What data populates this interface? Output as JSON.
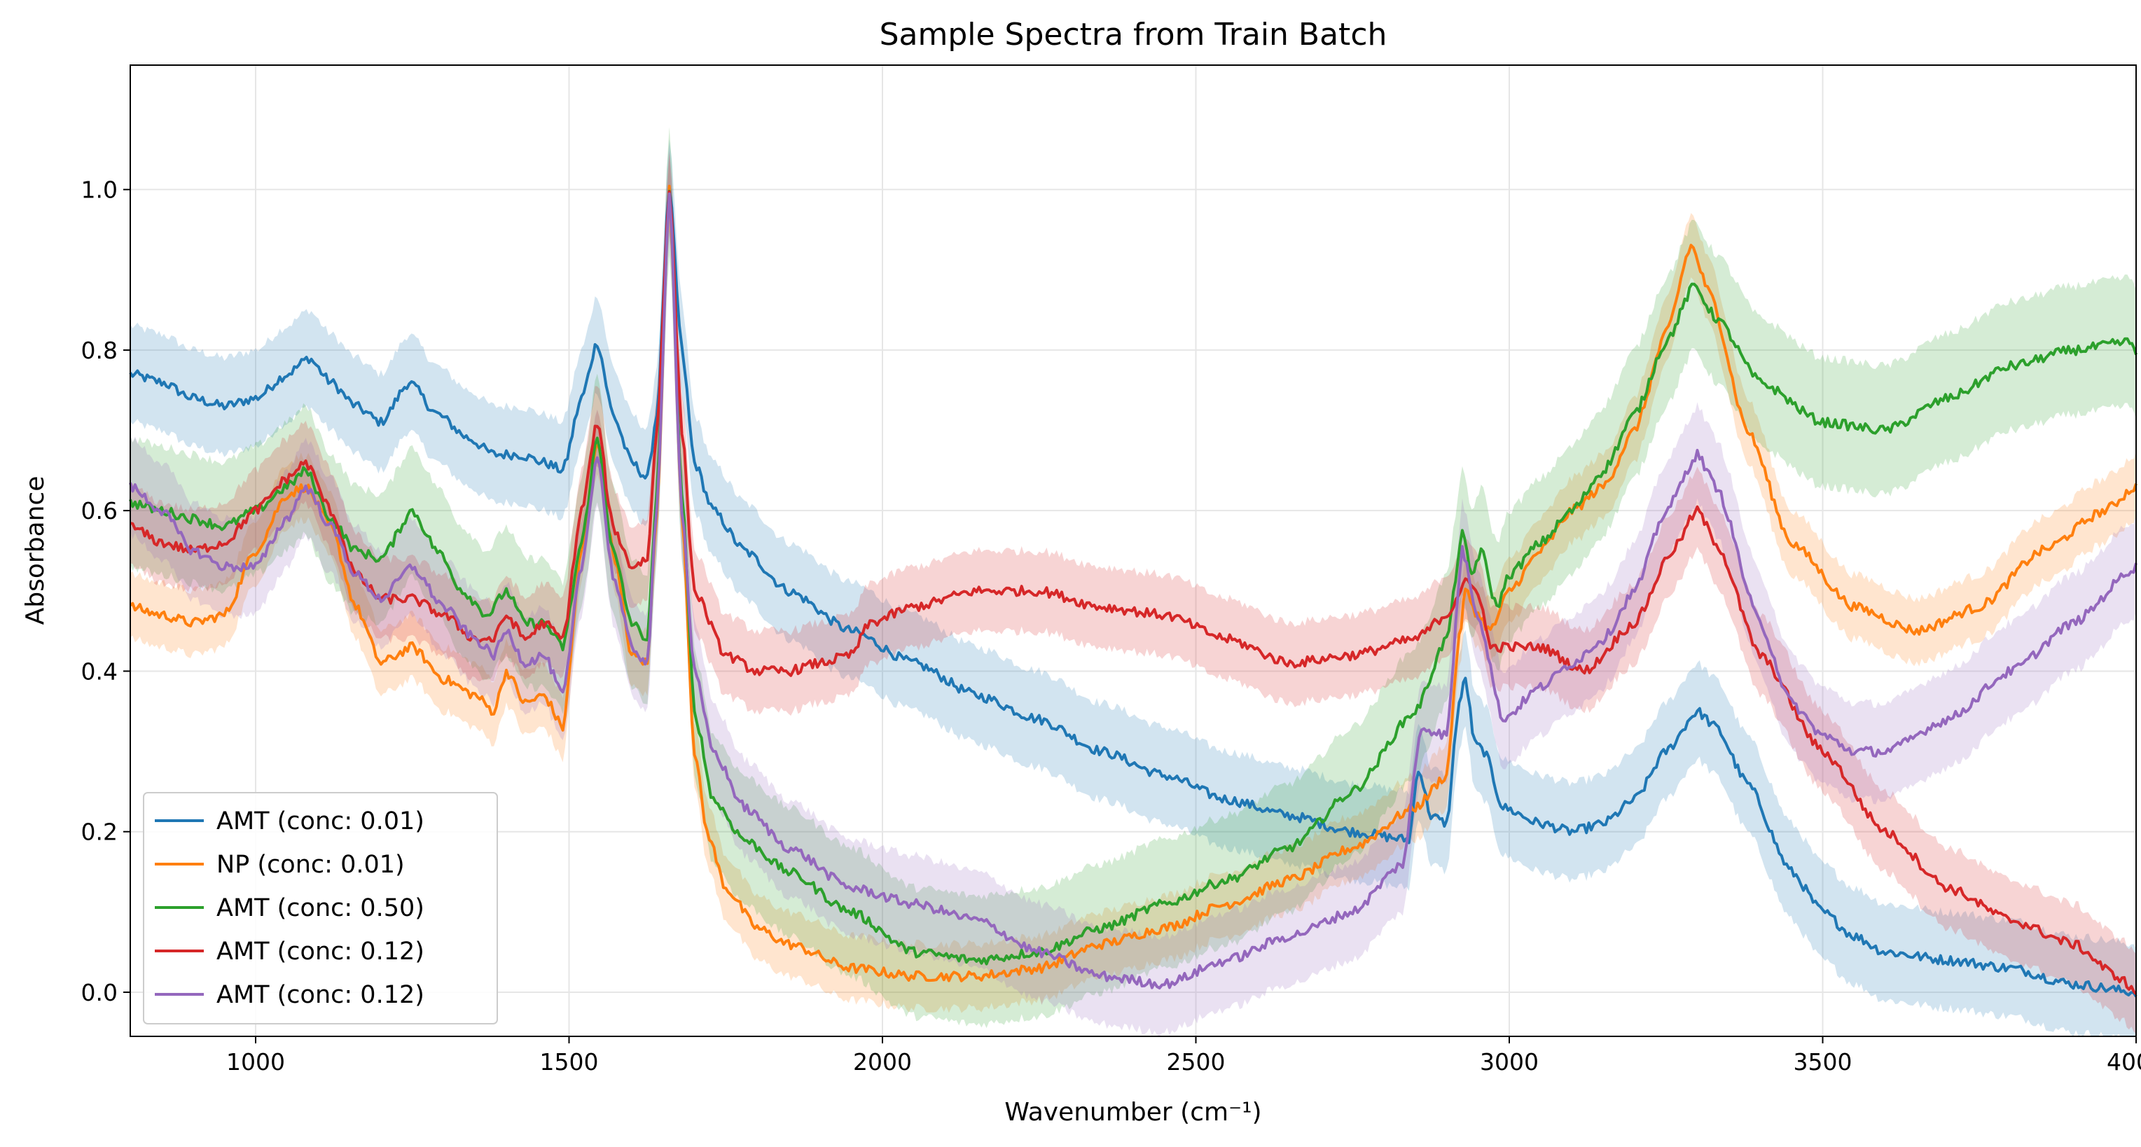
{
  "chart_data": {
    "type": "line",
    "title": "Sample Spectra from Train Batch",
    "xlabel": "Wavenumber (cm⁻¹)",
    "ylabel": "Absorbance",
    "xlim": [
      800,
      4000
    ],
    "ylim": [
      -0.055,
      1.155
    ],
    "x_ticks": [
      1000,
      1500,
      2000,
      2500,
      3000,
      3500,
      4000
    ],
    "y_ticks": [
      0.0,
      0.2,
      0.4,
      0.6,
      0.8,
      1.0
    ],
    "grid": true,
    "legend_position": "lower-left",
    "series": [
      {
        "name": "AMT (conc: 0.01)",
        "color": "#1f77b4",
        "band": 0.06,
        "points": [
          [
            800,
            0.77
          ],
          [
            850,
            0.76
          ],
          [
            900,
            0.74
          ],
          [
            950,
            0.73
          ],
          [
            1000,
            0.74
          ],
          [
            1050,
            0.77
          ],
          [
            1085,
            0.79
          ],
          [
            1120,
            0.76
          ],
          [
            1160,
            0.73
          ],
          [
            1200,
            0.71
          ],
          [
            1245,
            0.76
          ],
          [
            1290,
            0.72
          ],
          [
            1340,
            0.69
          ],
          [
            1380,
            0.67
          ],
          [
            1420,
            0.67
          ],
          [
            1460,
            0.66
          ],
          [
            1490,
            0.65
          ],
          [
            1520,
            0.74
          ],
          [
            1545,
            0.81
          ],
          [
            1570,
            0.72
          ],
          [
            1600,
            0.66
          ],
          [
            1625,
            0.64
          ],
          [
            1640,
            0.72
          ],
          [
            1660,
            1.0
          ],
          [
            1680,
            0.8
          ],
          [
            1700,
            0.66
          ],
          [
            1730,
            0.6
          ],
          [
            1780,
            0.55
          ],
          [
            1850,
            0.5
          ],
          [
            1950,
            0.45
          ],
          [
            2050,
            0.41
          ],
          [
            2150,
            0.37
          ],
          [
            2250,
            0.34
          ],
          [
            2350,
            0.3
          ],
          [
            2450,
            0.27
          ],
          [
            2550,
            0.24
          ],
          [
            2650,
            0.22
          ],
          [
            2750,
            0.2
          ],
          [
            2840,
            0.19
          ],
          [
            2855,
            0.28
          ],
          [
            2875,
            0.22
          ],
          [
            2900,
            0.21
          ],
          [
            2920,
            0.36
          ],
          [
            2930,
            0.39
          ],
          [
            2945,
            0.31
          ],
          [
            2960,
            0.3
          ],
          [
            2990,
            0.23
          ],
          [
            3050,
            0.21
          ],
          [
            3100,
            0.2
          ],
          [
            3150,
            0.21
          ],
          [
            3200,
            0.24
          ],
          [
            3250,
            0.3
          ],
          [
            3300,
            0.35
          ],
          [
            3330,
            0.33
          ],
          [
            3380,
            0.26
          ],
          [
            3450,
            0.15
          ],
          [
            3500,
            0.1
          ],
          [
            3550,
            0.07
          ],
          [
            3600,
            0.05
          ],
          [
            3700,
            0.04
          ],
          [
            3800,
            0.03
          ],
          [
            3900,
            0.01
          ],
          [
            4000,
            0.0
          ]
        ]
      },
      {
        "name": "NP (conc: 0.01)",
        "color": "#ff7f0e",
        "band": 0.04,
        "points": [
          [
            800,
            0.48
          ],
          [
            850,
            0.47
          ],
          [
            900,
            0.46
          ],
          [
            950,
            0.47
          ],
          [
            1000,
            0.55
          ],
          [
            1050,
            0.62
          ],
          [
            1080,
            0.63
          ],
          [
            1120,
            0.58
          ],
          [
            1160,
            0.48
          ],
          [
            1200,
            0.41
          ],
          [
            1250,
            0.43
          ],
          [
            1300,
            0.39
          ],
          [
            1350,
            0.37
          ],
          [
            1380,
            0.35
          ],
          [
            1400,
            0.4
          ],
          [
            1430,
            0.36
          ],
          [
            1460,
            0.37
          ],
          [
            1490,
            0.33
          ],
          [
            1520,
            0.55
          ],
          [
            1545,
            0.69
          ],
          [
            1570,
            0.55
          ],
          [
            1600,
            0.42
          ],
          [
            1625,
            0.41
          ],
          [
            1640,
            0.6
          ],
          [
            1660,
            1.0
          ],
          [
            1680,
            0.6
          ],
          [
            1700,
            0.3
          ],
          [
            1720,
            0.2
          ],
          [
            1750,
            0.13
          ],
          [
            1800,
            0.08
          ],
          [
            1850,
            0.06
          ],
          [
            1950,
            0.03
          ],
          [
            2050,
            0.02
          ],
          [
            2150,
            0.02
          ],
          [
            2250,
            0.03
          ],
          [
            2350,
            0.06
          ],
          [
            2450,
            0.08
          ],
          [
            2550,
            0.11
          ],
          [
            2650,
            0.14
          ],
          [
            2750,
            0.18
          ],
          [
            2850,
            0.23
          ],
          [
            2900,
            0.27
          ],
          [
            2920,
            0.44
          ],
          [
            2930,
            0.5
          ],
          [
            2950,
            0.47
          ],
          [
            2970,
            0.45
          ],
          [
            3000,
            0.5
          ],
          [
            3050,
            0.55
          ],
          [
            3100,
            0.6
          ],
          [
            3150,
            0.63
          ],
          [
            3200,
            0.7
          ],
          [
            3250,
            0.82
          ],
          [
            3290,
            0.93
          ],
          [
            3320,
            0.87
          ],
          [
            3380,
            0.7
          ],
          [
            3450,
            0.56
          ],
          [
            3550,
            0.48
          ],
          [
            3650,
            0.45
          ],
          [
            3750,
            0.48
          ],
          [
            3850,
            0.55
          ],
          [
            3950,
            0.6
          ],
          [
            4000,
            0.63
          ]
        ]
      },
      {
        "name": "AMT (conc: 0.50)",
        "color": "#2ca02c",
        "band": 0.08,
        "points": [
          [
            800,
            0.61
          ],
          [
            850,
            0.6
          ],
          [
            900,
            0.59
          ],
          [
            950,
            0.58
          ],
          [
            1000,
            0.6
          ],
          [
            1050,
            0.63
          ],
          [
            1080,
            0.65
          ],
          [
            1120,
            0.59
          ],
          [
            1160,
            0.55
          ],
          [
            1200,
            0.54
          ],
          [
            1250,
            0.6
          ],
          [
            1290,
            0.55
          ],
          [
            1330,
            0.5
          ],
          [
            1370,
            0.47
          ],
          [
            1400,
            0.5
          ],
          [
            1430,
            0.46
          ],
          [
            1460,
            0.46
          ],
          [
            1490,
            0.43
          ],
          [
            1520,
            0.56
          ],
          [
            1545,
            0.69
          ],
          [
            1570,
            0.55
          ],
          [
            1600,
            0.46
          ],
          [
            1625,
            0.44
          ],
          [
            1640,
            0.62
          ],
          [
            1660,
            1.0
          ],
          [
            1680,
            0.62
          ],
          [
            1700,
            0.35
          ],
          [
            1730,
            0.24
          ],
          [
            1780,
            0.19
          ],
          [
            1850,
            0.15
          ],
          [
            1950,
            0.1
          ],
          [
            2050,
            0.05
          ],
          [
            2150,
            0.04
          ],
          [
            2250,
            0.05
          ],
          [
            2350,
            0.08
          ],
          [
            2450,
            0.11
          ],
          [
            2550,
            0.14
          ],
          [
            2650,
            0.18
          ],
          [
            2750,
            0.25
          ],
          [
            2850,
            0.35
          ],
          [
            2900,
            0.44
          ],
          [
            2925,
            0.57
          ],
          [
            2940,
            0.52
          ],
          [
            2955,
            0.55
          ],
          [
            2980,
            0.48
          ],
          [
            3000,
            0.52
          ],
          [
            3050,
            0.56
          ],
          [
            3100,
            0.6
          ],
          [
            3150,
            0.65
          ],
          [
            3200,
            0.72
          ],
          [
            3250,
            0.81
          ],
          [
            3295,
            0.88
          ],
          [
            3330,
            0.84
          ],
          [
            3400,
            0.76
          ],
          [
            3500,
            0.71
          ],
          [
            3600,
            0.7
          ],
          [
            3700,
            0.74
          ],
          [
            3800,
            0.78
          ],
          [
            3900,
            0.8
          ],
          [
            3990,
            0.81
          ],
          [
            4000,
            0.8
          ]
        ]
      },
      {
        "name": "AMT (conc: 0.12)",
        "color": "#d62728",
        "band": 0.05,
        "points": [
          [
            800,
            0.58
          ],
          [
            850,
            0.56
          ],
          [
            900,
            0.55
          ],
          [
            950,
            0.56
          ],
          [
            1000,
            0.6
          ],
          [
            1050,
            0.64
          ],
          [
            1080,
            0.66
          ],
          [
            1120,
            0.6
          ],
          [
            1160,
            0.52
          ],
          [
            1200,
            0.49
          ],
          [
            1250,
            0.49
          ],
          [
            1300,
            0.47
          ],
          [
            1350,
            0.44
          ],
          [
            1380,
            0.44
          ],
          [
            1400,
            0.47
          ],
          [
            1430,
            0.44
          ],
          [
            1460,
            0.46
          ],
          [
            1490,
            0.44
          ],
          [
            1520,
            0.6
          ],
          [
            1545,
            0.71
          ],
          [
            1570,
            0.58
          ],
          [
            1600,
            0.53
          ],
          [
            1625,
            0.54
          ],
          [
            1640,
            0.7
          ],
          [
            1660,
            1.0
          ],
          [
            1680,
            0.7
          ],
          [
            1700,
            0.5
          ],
          [
            1750,
            0.42
          ],
          [
            1800,
            0.4
          ],
          [
            1850,
            0.4
          ],
          [
            1900,
            0.41
          ],
          [
            1950,
            0.42
          ],
          [
            1980,
            0.46
          ],
          [
            2050,
            0.48
          ],
          [
            2150,
            0.5
          ],
          [
            2250,
            0.5
          ],
          [
            2350,
            0.48
          ],
          [
            2450,
            0.47
          ],
          [
            2550,
            0.44
          ],
          [
            2650,
            0.41
          ],
          [
            2750,
            0.42
          ],
          [
            2850,
            0.44
          ],
          [
            2900,
            0.47
          ],
          [
            2930,
            0.51
          ],
          [
            2950,
            0.5
          ],
          [
            2970,
            0.43
          ],
          [
            3050,
            0.43
          ],
          [
            3120,
            0.4
          ],
          [
            3200,
            0.46
          ],
          [
            3260,
            0.55
          ],
          [
            3300,
            0.6
          ],
          [
            3330,
            0.56
          ],
          [
            3400,
            0.42
          ],
          [
            3500,
            0.3
          ],
          [
            3600,
            0.2
          ],
          [
            3700,
            0.13
          ],
          [
            3800,
            0.09
          ],
          [
            3900,
            0.06
          ],
          [
            3970,
            0.02
          ],
          [
            4000,
            0.0
          ]
        ]
      },
      {
        "name": "AMT (conc: 0.12)",
        "color": "#9467bd",
        "band": 0.06,
        "points": [
          [
            800,
            0.63
          ],
          [
            850,
            0.6
          ],
          [
            900,
            0.55
          ],
          [
            950,
            0.53
          ],
          [
            1000,
            0.53
          ],
          [
            1050,
            0.59
          ],
          [
            1080,
            0.63
          ],
          [
            1120,
            0.58
          ],
          [
            1160,
            0.52
          ],
          [
            1200,
            0.49
          ],
          [
            1250,
            0.53
          ],
          [
            1300,
            0.48
          ],
          [
            1350,
            0.44
          ],
          [
            1380,
            0.42
          ],
          [
            1400,
            0.45
          ],
          [
            1430,
            0.41
          ],
          [
            1460,
            0.42
          ],
          [
            1490,
            0.37
          ],
          [
            1520,
            0.53
          ],
          [
            1545,
            0.67
          ],
          [
            1570,
            0.52
          ],
          [
            1600,
            0.43
          ],
          [
            1625,
            0.41
          ],
          [
            1640,
            0.6
          ],
          [
            1660,
            1.0
          ],
          [
            1680,
            0.6
          ],
          [
            1700,
            0.4
          ],
          [
            1730,
            0.3
          ],
          [
            1780,
            0.23
          ],
          [
            1850,
            0.18
          ],
          [
            1950,
            0.13
          ],
          [
            2050,
            0.11
          ],
          [
            2150,
            0.09
          ],
          [
            2250,
            0.05
          ],
          [
            2350,
            0.02
          ],
          [
            2450,
            0.01
          ],
          [
            2550,
            0.04
          ],
          [
            2650,
            0.07
          ],
          [
            2750,
            0.1
          ],
          [
            2830,
            0.16
          ],
          [
            2860,
            0.33
          ],
          [
            2900,
            0.32
          ],
          [
            2925,
            0.55
          ],
          [
            2950,
            0.47
          ],
          [
            2990,
            0.34
          ],
          [
            3050,
            0.38
          ],
          [
            3100,
            0.41
          ],
          [
            3150,
            0.44
          ],
          [
            3200,
            0.5
          ],
          [
            3250,
            0.6
          ],
          [
            3300,
            0.67
          ],
          [
            3330,
            0.63
          ],
          [
            3400,
            0.46
          ],
          [
            3450,
            0.36
          ],
          [
            3500,
            0.32
          ],
          [
            3550,
            0.3
          ],
          [
            3600,
            0.3
          ],
          [
            3700,
            0.34
          ],
          [
            3800,
            0.4
          ],
          [
            3900,
            0.46
          ],
          [
            4000,
            0.53
          ]
        ]
      }
    ]
  }
}
